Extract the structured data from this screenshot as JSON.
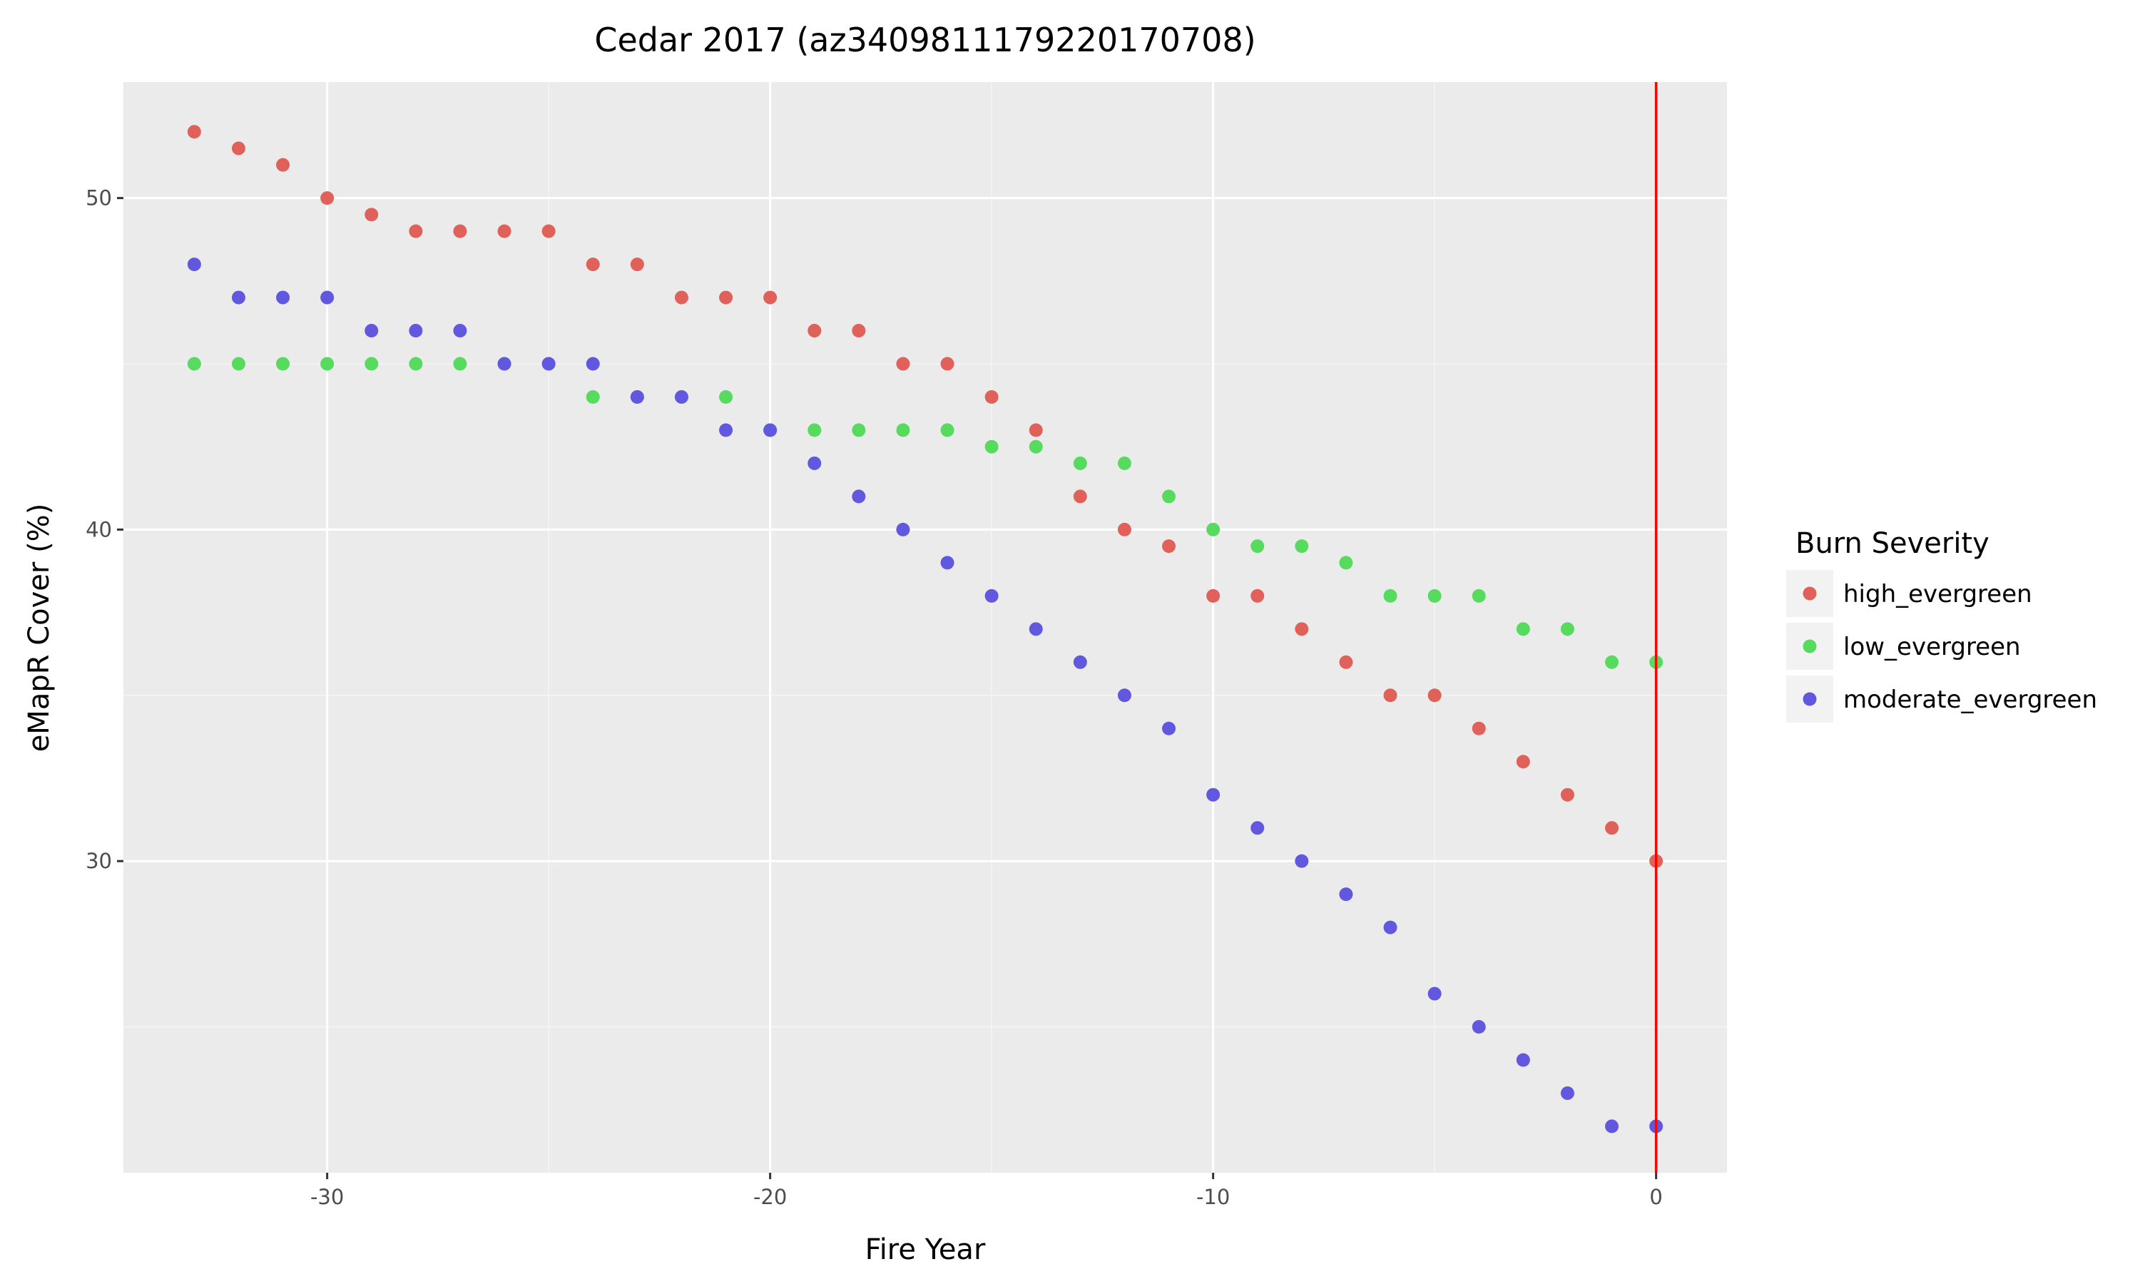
{
  "chart_data": {
    "type": "scatter",
    "title": "Cedar 2017 (az3409811179220170708)",
    "xlabel": "Fire Year",
    "ylabel": "eMapR Cover (%)",
    "xlim": [
      -34.6,
      1.6
    ],
    "ylim": [
      20.6,
      53.5
    ],
    "xticks": [
      -30,
      -20,
      -10,
      0
    ],
    "xtick_labels": [
      "-30",
      "-20",
      "-10",
      "0"
    ],
    "yticks": [
      30,
      40,
      50
    ],
    "ytick_labels": [
      "30",
      "40",
      "50"
    ],
    "grid": true,
    "vline": {
      "x": 0,
      "color": "#ff0000"
    },
    "legend": {
      "title": "Burn Severity",
      "placement": "right"
    },
    "x": [
      -33,
      -32,
      -31,
      -30,
      -29,
      -28,
      -27,
      -26,
      -25,
      -24,
      -23,
      -22,
      -21,
      -20,
      -19,
      -18,
      -17,
      -16,
      -15,
      -14,
      -13,
      -12,
      -11,
      -10,
      -9,
      -8,
      -7,
      -6,
      -5,
      -4,
      -3,
      -2,
      -1,
      0
    ],
    "series": [
      {
        "name": "high_evergreen",
        "color": "#df6159",
        "values": [
          52,
          51.5,
          51,
          50,
          49.5,
          49,
          49,
          49,
          49,
          48,
          48,
          47,
          47,
          47,
          46,
          46,
          45,
          45,
          44,
          43,
          41,
          40,
          39.5,
          38,
          38,
          37,
          36,
          35,
          35,
          34,
          33,
          32,
          31,
          30
        ]
      },
      {
        "name": "low_evergreen",
        "color": "#56db5f",
        "values": [
          45,
          45,
          45,
          45,
          45,
          45,
          45,
          45,
          45,
          44,
          44,
          44,
          44,
          43,
          43,
          43,
          43,
          43,
          42.5,
          42.5,
          42,
          42,
          41,
          40,
          39.5,
          39.5,
          39,
          38,
          38,
          38,
          37,
          37,
          36,
          36
        ]
      },
      {
        "name": "moderate_evergreen",
        "color": "#6158df",
        "values": [
          48,
          47,
          47,
          47,
          46,
          46,
          46,
          45,
          45,
          45,
          44,
          44,
          43,
          43,
          42,
          41,
          40,
          39,
          38,
          37,
          36,
          35,
          34,
          32,
          31,
          30,
          29,
          28,
          26,
          25,
          24,
          23,
          22,
          22
        ]
      }
    ]
  }
}
